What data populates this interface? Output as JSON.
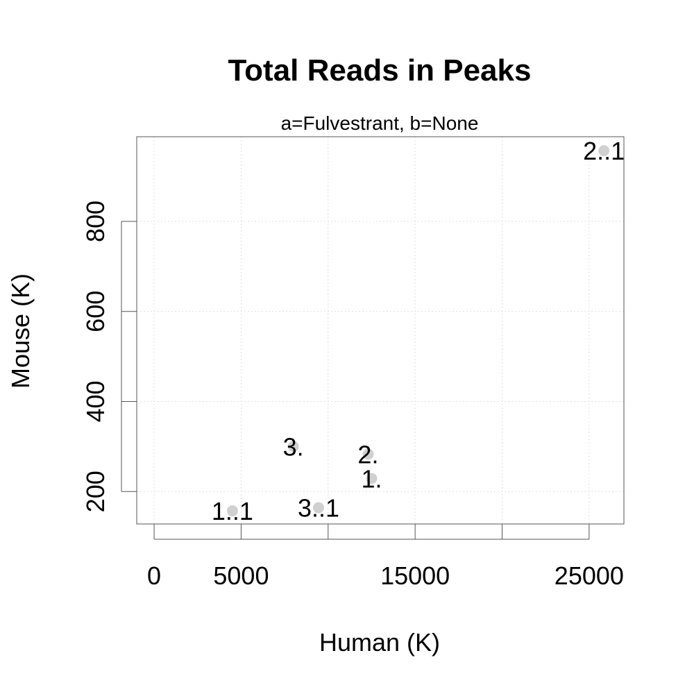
{
  "chart_data": {
    "type": "scatter",
    "title": "Total Reads in Peaks",
    "subtitle": "a=Fulvestrant, b=None",
    "xlabel": "Human (K)",
    "ylabel": "Mouse (K)",
    "xlim": [
      -1000,
      27000
    ],
    "ylim": [
      128,
      988
    ],
    "x_ticks": [
      0,
      5000,
      10000,
      15000,
      20000,
      25000
    ],
    "x_tick_labels": [
      "0",
      "5000",
      "",
      "15000",
      "",
      "25000"
    ],
    "y_ticks": [
      200,
      400,
      600,
      800
    ],
    "y_tick_labels": [
      "200",
      "400",
      "600",
      "800"
    ],
    "grid": true,
    "point_color": "#d0d0d0",
    "points": [
      {
        "x": 4500,
        "y": 157,
        "label": "1..1"
      },
      {
        "x": 8000,
        "y": 300,
        "label": "3."
      },
      {
        "x": 9450,
        "y": 164,
        "label": "3..1"
      },
      {
        "x": 12300,
        "y": 283,
        "label": "2."
      },
      {
        "x": 12500,
        "y": 229,
        "label": "1."
      },
      {
        "x": 25850,
        "y": 957,
        "label": "2..1"
      }
    ]
  }
}
